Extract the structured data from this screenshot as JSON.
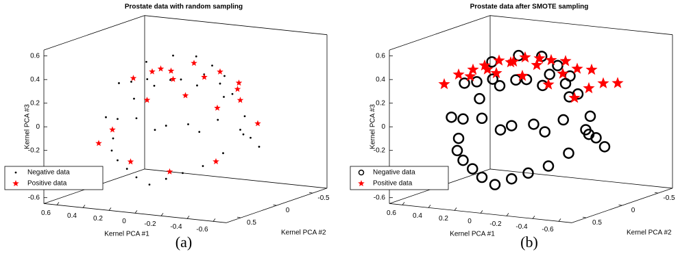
{
  "chart_data": [
    {
      "type": "scatter3d",
      "title": "Prostate data with random sampling",
      "caption": "(a)",
      "xlabel": "Kernel PCA #1",
      "ylabel": "Kernel PCA #2",
      "zlabel": "Kernel PCA #3",
      "xlim": [
        -0.7,
        0.7
      ],
      "ylim": [
        -0.7,
        0.7
      ],
      "zlim": [
        -0.65,
        0.65
      ],
      "xticks": [
        -0.6,
        -0.4,
        -0.2,
        0,
        0.2,
        0.4,
        0.6
      ],
      "yticks": [
        -0.5,
        0,
        0.5
      ],
      "zticks": [
        -0.6,
        -0.4,
        -0.2,
        0,
        0.2,
        0.4,
        0.6
      ],
      "legend": "lower left",
      "series": [
        {
          "name": "Negative data",
          "color": "#000000",
          "marker": "dot",
          "x": [
            0.5,
            0.4,
            0.3,
            0.2,
            0.1,
            0,
            -0.1,
            -0.2,
            -0.3,
            -0.4,
            -0.5,
            0.45,
            0.35,
            0.2,
            0.05,
            -0.1,
            -0.25,
            -0.4,
            0.4,
            0.25,
            0.1,
            -0.05,
            -0.2,
            -0.35,
            0.3,
            0.15,
            0,
            -0.15,
            -0.3,
            0.5,
            0.3,
            0.1,
            -0.1,
            -0.3,
            -0.5,
            0.4,
            0.2,
            0,
            -0.2,
            -0.4
          ],
          "y": [
            0.1,
            0.3,
            0.4,
            0.45,
            0.5,
            0.5,
            0.45,
            0.4,
            0.3,
            0.2,
            0,
            -0.1,
            -0.2,
            -0.3,
            -0.35,
            -0.3,
            -0.2,
            -0.1,
            0.2,
            0.3,
            0.35,
            0.3,
            0.2,
            0.1,
            0,
            -0.1,
            -0.15,
            -0.1,
            0,
            0.2,
            0.4,
            0.5,
            0.45,
            0.35,
            0.1,
            -0.3,
            -0.4,
            -0.45,
            -0.4,
            -0.3
          ],
          "z": [
            -0.2,
            -0.25,
            -0.3,
            -0.35,
            -0.4,
            -0.45,
            -0.4,
            -0.35,
            -0.3,
            -0.2,
            -0.1,
            0.1,
            0.2,
            0.25,
            0.3,
            0.25,
            0.2,
            0.05,
            0.3,
            0.35,
            0.4,
            0.4,
            0.35,
            0.25,
            0.45,
            0.5,
            0.5,
            0.45,
            0.4,
            0,
            0.05,
            0.1,
            0.05,
            0,
            -0.05,
            -0.2,
            -0.15,
            -0.1,
            -0.15,
            -0.25
          ]
        },
        {
          "name": "Positive data",
          "color": "#ff0000",
          "marker": "star",
          "x": [
            0.4,
            0.2,
            0,
            -0.2,
            -0.4,
            0.3,
            0.1,
            -0.1,
            -0.3,
            0.5,
            0.2,
            -0.1,
            -0.4,
            0.35,
            0,
            -0.3,
            0.45,
            -0.5,
            0.15,
            -0.2
          ],
          "y": [
            0,
            0.1,
            0.2,
            0.1,
            0,
            -0.2,
            -0.3,
            -0.3,
            -0.2,
            0.3,
            0.4,
            0.4,
            0.3,
            -0.1,
            0,
            0.1,
            0.2,
            -0.1,
            -0.1,
            -0.4
          ],
          "z": [
            0.3,
            0.4,
            0.45,
            0.4,
            0.3,
            0.35,
            0.4,
            0.35,
            0.3,
            -0.2,
            -0.3,
            -0.35,
            -0.25,
            0.1,
            0.2,
            0.15,
            -0.1,
            0,
            0.3,
            0.1
          ]
        }
      ]
    },
    {
      "type": "scatter3d",
      "title": "Prostate data after SMOTE sampling",
      "caption": "(b)",
      "xlabel": "Kernel PCA #1",
      "ylabel": "Kernel PCA #2",
      "zlabel": "Kernel PCA #3",
      "xlim": [
        -0.7,
        0.7
      ],
      "ylim": [
        -0.7,
        0.7
      ],
      "zlim": [
        -0.65,
        0.65
      ],
      "xticks": [
        -0.6,
        -0.4,
        -0.2,
        0,
        0.2,
        0.4,
        0.6
      ],
      "yticks": [
        -0.5,
        0,
        0.5
      ],
      "zticks": [
        -0.6,
        -0.4,
        -0.2,
        0,
        0.2,
        0.4,
        0.6
      ],
      "legend": "lower left",
      "series": [
        {
          "name": "Negative data",
          "color": "#000000",
          "marker": "circle",
          "x": [
            0.5,
            0.4,
            0.3,
            0.2,
            0.1,
            0,
            -0.1,
            -0.2,
            -0.3,
            -0.4,
            -0.5,
            0.45,
            0.35,
            0.2,
            0.05,
            -0.1,
            -0.25,
            -0.4,
            0.4,
            0.25,
            0.1,
            -0.05,
            -0.2,
            -0.35,
            0.3,
            0.15,
            0,
            -0.15,
            -0.3,
            0.5,
            0.3,
            0.1,
            -0.1,
            -0.3,
            -0.5,
            0.4,
            0.2,
            0,
            -0.2,
            -0.4
          ],
          "y": [
            0.1,
            0.3,
            0.4,
            0.45,
            0.5,
            0.5,
            0.45,
            0.4,
            0.3,
            0.2,
            0,
            -0.1,
            -0.2,
            -0.3,
            -0.35,
            -0.3,
            -0.2,
            -0.1,
            0.2,
            0.3,
            0.35,
            0.3,
            0.2,
            0.1,
            0,
            -0.1,
            -0.15,
            -0.1,
            0,
            0.2,
            0.4,
            0.5,
            0.45,
            0.35,
            0.1,
            -0.3,
            -0.4,
            -0.45,
            -0.4,
            -0.3
          ],
          "z": [
            -0.2,
            -0.25,
            -0.3,
            -0.35,
            -0.4,
            -0.45,
            -0.4,
            -0.35,
            -0.3,
            -0.2,
            -0.1,
            0.1,
            0.2,
            0.25,
            0.3,
            0.25,
            0.2,
            0.05,
            0.3,
            0.35,
            0.4,
            0.4,
            0.35,
            0.25,
            0.45,
            0.5,
            0.5,
            0.45,
            0.4,
            0,
            0.05,
            0.1,
            0.05,
            0,
            -0.05,
            -0.2,
            -0.15,
            -0.1,
            -0.15,
            -0.25
          ]
        },
        {
          "name": "Positive data",
          "color": "#ff0000",
          "marker": "star",
          "x": [
            0.5,
            0.5,
            0.5,
            0.5,
            0.3,
            0.3,
            0.3,
            0.3,
            0.1,
            0.1,
            0.1,
            0.1,
            -0.1,
            -0.1,
            -0.1,
            -0.1,
            -0.3,
            -0.3,
            -0.3,
            -0.3,
            -0.5,
            -0.5,
            -0.5,
            -0.5
          ],
          "y": [
            -0.3,
            -0.1,
            0.1,
            0.3,
            -0.3,
            -0.1,
            0.1,
            0.3,
            -0.3,
            -0.1,
            0.1,
            0.3,
            -0.3,
            -0.1,
            0.1,
            0.3,
            -0.3,
            -0.1,
            0.1,
            0.3,
            -0.3,
            -0.1,
            0.1,
            0.3
          ],
          "z": [
            0.3,
            0.34,
            0.34,
            0.3,
            0.39,
            0.44,
            0.44,
            0.39,
            0.44,
            0.49,
            0.49,
            0.44,
            0.44,
            0.49,
            0.49,
            0.44,
            0.39,
            0.44,
            0.44,
            0.39,
            0.3,
            0.34,
            0.34,
            0.3
          ]
        }
      ]
    }
  ]
}
